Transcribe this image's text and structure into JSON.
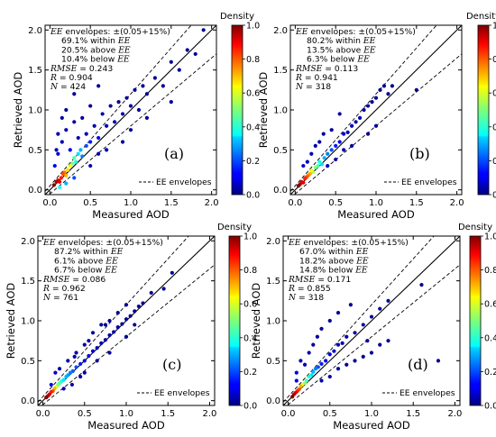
{
  "chart_data": [
    {
      "type": "scatter",
      "panel_label": "(a)",
      "xlabel": "Measured AOD",
      "ylabel": "Retrieved AOD",
      "xlim": [
        0,
        2.0
      ],
      "ylim": [
        0,
        2.0
      ],
      "xticks": [
        "0.0",
        "0.5",
        "1.0",
        "1.5",
        "2.0"
      ],
      "yticks": [
        "0.0",
        "0.5",
        "1.0",
        "1.5",
        "2.0"
      ],
      "grid": false,
      "legend": {
        "label": "EE envelopes",
        "placement": "bottom-right"
      },
      "colorbar": {
        "title": "Density",
        "ticks": [
          "0.0",
          "0.2",
          "0.4",
          "0.6",
          "0.8",
          "1.0"
        ],
        "range": [
          0,
          1
        ]
      },
      "stats": {
        "ee_prefix": "EE",
        "ee_label": " envelopes: ±(0.05+15%)",
        "within": "69.1% within ",
        "above": "20.5% above ",
        "below": "10.4% below ",
        "rmse_name": "RMSE",
        "rmse_value": " = 0.243",
        "r_name": "R",
        "r_value": " = 0.904",
        "n_name": "N",
        "n_value": " = 424"
      },
      "points": [
        [
          0.05,
          0.06,
          1.0
        ],
        [
          0.08,
          0.1,
          0.95
        ],
        [
          0.1,
          0.12,
          0.9
        ],
        [
          0.12,
          0.1,
          0.9
        ],
        [
          0.14,
          0.15,
          0.85
        ],
        [
          0.16,
          0.2,
          0.8
        ],
        [
          0.18,
          0.22,
          0.75
        ],
        [
          0.2,
          0.18,
          0.7
        ],
        [
          0.22,
          0.25,
          0.65
        ],
        [
          0.25,
          0.3,
          0.6
        ],
        [
          0.28,
          0.33,
          0.5
        ],
        [
          0.3,
          0.4,
          0.45
        ],
        [
          0.32,
          0.35,
          0.4
        ],
        [
          0.35,
          0.45,
          0.35
        ],
        [
          0.38,
          0.5,
          0.3
        ],
        [
          0.4,
          0.42,
          0.25
        ],
        [
          0.45,
          0.55,
          0.2
        ],
        [
          0.5,
          0.6,
          0.15
        ],
        [
          0.06,
          0.3,
          0.1
        ],
        [
          0.1,
          0.45,
          0.08
        ],
        [
          0.15,
          0.6,
          0.05
        ],
        [
          0.2,
          0.75,
          0.05
        ],
        [
          0.25,
          0.5,
          0.1
        ],
        [
          0.3,
          0.85,
          0.03
        ],
        [
          0.35,
          0.65,
          0.05
        ],
        [
          0.4,
          0.9,
          0.03
        ],
        [
          0.45,
          0.7,
          0.05
        ],
        [
          0.55,
          0.8,
          0.05
        ],
        [
          0.6,
          0.65,
          0.1
        ],
        [
          0.65,
          0.95,
          0.03
        ],
        [
          0.7,
          0.8,
          0.05
        ],
        [
          0.75,
          1.05,
          0.02
        ],
        [
          0.8,
          0.85,
          0.05
        ],
        [
          0.85,
          1.1,
          0.02
        ],
        [
          0.9,
          0.95,
          0.04
        ],
        [
          0.95,
          1.15,
          0.02
        ],
        [
          1.0,
          1.05,
          0.03
        ],
        [
          1.05,
          1.25,
          0.02
        ],
        [
          1.1,
          1.0,
          0.03
        ],
        [
          1.15,
          1.3,
          0.02
        ],
        [
          1.2,
          1.2,
          0.02
        ],
        [
          1.3,
          1.4,
          0.02
        ],
        [
          1.4,
          1.3,
          0.02
        ],
        [
          1.5,
          1.6,
          0.02
        ],
        [
          1.6,
          1.5,
          0.02
        ],
        [
          1.7,
          1.75,
          0.02
        ],
        [
          1.8,
          1.7,
          0.02
        ],
        [
          1.9,
          2.0,
          0.02
        ],
        [
          0.5,
          0.3,
          0.05
        ],
        [
          0.6,
          0.45,
          0.05
        ],
        [
          0.7,
          0.5,
          0.04
        ],
        [
          0.9,
          0.6,
          0.03
        ],
        [
          1.0,
          0.75,
          0.03
        ],
        [
          1.2,
          0.9,
          0.02
        ],
        [
          1.5,
          1.1,
          0.02
        ],
        [
          0.12,
          0.03,
          0.4
        ],
        [
          0.2,
          0.08,
          0.3
        ],
        [
          0.3,
          0.15,
          0.2
        ],
        [
          0.08,
          0.5,
          0.05
        ],
        [
          0.1,
          0.7,
          0.04
        ],
        [
          0.15,
          0.9,
          0.03
        ],
        [
          0.2,
          1.0,
          0.02
        ],
        [
          0.3,
          1.2,
          0.02
        ],
        [
          0.5,
          1.05,
          0.02
        ],
        [
          0.6,
          1.3,
          0.02
        ]
      ]
    },
    {
      "type": "scatter",
      "panel_label": "(b)",
      "xlabel": "Measured AOD",
      "ylabel": "Retrieved AOD",
      "xlim": [
        0,
        2.0
      ],
      "ylim": [
        0,
        2.0
      ],
      "xticks": [
        "0.0",
        "0.5",
        "1.0",
        "1.5",
        "2.0"
      ],
      "yticks": [
        "0.0",
        "0.5",
        "1.0",
        "1.5",
        "2.0"
      ],
      "grid": false,
      "legend": {
        "label": "EE envelopes",
        "placement": "bottom-right"
      },
      "colorbar": {
        "title": "Density",
        "ticks": [
          "0.0",
          "0.2",
          "0.4",
          "0.6",
          "0.8",
          "1.0"
        ],
        "range": [
          0,
          1
        ]
      },
      "stats": {
        "ee_prefix": "EE",
        "ee_label": " envelopes: ±(0.05+15%)",
        "within": "80.2% within ",
        "above": "13.5% above ",
        "below": "6.3% below ",
        "rmse_name": "RMSE",
        "rmse_value": " = 0.113",
        "r_name": "R",
        "r_value": " = 0.941",
        "n_name": "N",
        "n_value": " = 318"
      },
      "points": [
        [
          0.04,
          0.05,
          1.0
        ],
        [
          0.06,
          0.07,
          0.95
        ],
        [
          0.08,
          0.1,
          0.9
        ],
        [
          0.1,
          0.09,
          0.9
        ],
        [
          0.12,
          0.14,
          0.85
        ],
        [
          0.14,
          0.16,
          0.8
        ],
        [
          0.16,
          0.18,
          0.75
        ],
        [
          0.18,
          0.2,
          0.7
        ],
        [
          0.2,
          0.24,
          0.6
        ],
        [
          0.22,
          0.22,
          0.55
        ],
        [
          0.25,
          0.28,
          0.5
        ],
        [
          0.28,
          0.3,
          0.45
        ],
        [
          0.3,
          0.35,
          0.4
        ],
        [
          0.33,
          0.32,
          0.35
        ],
        [
          0.36,
          0.4,
          0.3
        ],
        [
          0.4,
          0.45,
          0.25
        ],
        [
          0.45,
          0.5,
          0.2
        ],
        [
          0.5,
          0.55,
          0.15
        ],
        [
          0.55,
          0.6,
          0.1
        ],
        [
          0.6,
          0.7,
          0.08
        ],
        [
          0.65,
          0.72,
          0.06
        ],
        [
          0.7,
          0.8,
          0.05
        ],
        [
          0.75,
          0.85,
          0.04
        ],
        [
          0.8,
          0.9,
          0.04
        ],
        [
          0.85,
          1.0,
          0.03
        ],
        [
          0.9,
          1.05,
          0.03
        ],
        [
          0.95,
          1.1,
          0.02
        ],
        [
          1.0,
          1.15,
          0.02
        ],
        [
          1.05,
          1.25,
          0.02
        ],
        [
          1.1,
          1.3,
          0.02
        ],
        [
          1.2,
          1.3,
          0.02
        ],
        [
          1.5,
          1.25,
          0.02
        ],
        [
          0.2,
          0.45,
          0.05
        ],
        [
          0.25,
          0.55,
          0.04
        ],
        [
          0.3,
          0.6,
          0.04
        ],
        [
          0.35,
          0.7,
          0.03
        ],
        [
          0.4,
          0.3,
          0.05
        ],
        [
          0.5,
          0.38,
          0.04
        ],
        [
          0.6,
          0.5,
          0.04
        ],
        [
          0.7,
          0.55,
          0.03
        ],
        [
          0.9,
          0.7,
          0.02
        ],
        [
          1.0,
          0.8,
          0.02
        ],
        [
          0.1,
          0.3,
          0.08
        ],
        [
          0.15,
          0.35,
          0.06
        ],
        [
          0.55,
          0.95,
          0.03
        ],
        [
          0.45,
          0.75,
          0.03
        ],
        [
          1.15,
          1.2,
          0.02
        ]
      ]
    },
    {
      "type": "scatter",
      "panel_label": "(c)",
      "xlabel": "Measured AOD",
      "ylabel": "Retrieved AOD",
      "xlim": [
        0,
        2.0
      ],
      "ylim": [
        0,
        2.0
      ],
      "xticks": [
        "0.0",
        "0.5",
        "1.0",
        "1.5",
        "2.0"
      ],
      "yticks": [
        "0.0",
        "0.5",
        "1.0",
        "1.5",
        "2.0"
      ],
      "grid": false,
      "legend": {
        "label": "EE envelopes",
        "placement": "bottom-right"
      },
      "colorbar": {
        "title": "Density",
        "ticks": [
          "0.0",
          "0.2",
          "0.4",
          "0.6",
          "0.8",
          "1.0"
        ],
        "range": [
          0,
          1
        ]
      },
      "stats": {
        "ee_prefix": "EE",
        "ee_label": " envelopes: ±(0.05+15%)",
        "within": "87.2% within ",
        "above": "6.1% above ",
        "below": "6.7% below ",
        "rmse_name": "RMSE",
        "rmse_value": " = 0.086",
        "r_name": "R",
        "r_value": " = 0.962",
        "n_name": "N",
        "n_value": " = 761"
      },
      "points": [
        [
          0.04,
          0.04,
          1.0
        ],
        [
          0.06,
          0.06,
          0.95
        ],
        [
          0.08,
          0.08,
          0.9
        ],
        [
          0.1,
          0.11,
          0.85
        ],
        [
          0.12,
          0.12,
          0.8
        ],
        [
          0.14,
          0.15,
          0.7
        ],
        [
          0.16,
          0.17,
          0.6
        ],
        [
          0.18,
          0.2,
          0.5
        ],
        [
          0.2,
          0.22,
          0.45
        ],
        [
          0.22,
          0.24,
          0.4
        ],
        [
          0.25,
          0.26,
          0.35
        ],
        [
          0.28,
          0.3,
          0.3
        ],
        [
          0.3,
          0.32,
          0.28
        ],
        [
          0.33,
          0.35,
          0.25
        ],
        [
          0.36,
          0.37,
          0.22
        ],
        [
          0.4,
          0.42,
          0.2
        ],
        [
          0.45,
          0.46,
          0.15
        ],
        [
          0.5,
          0.5,
          0.12
        ],
        [
          0.55,
          0.56,
          0.1
        ],
        [
          0.6,
          0.62,
          0.08
        ],
        [
          0.65,
          0.66,
          0.06
        ],
        [
          0.7,
          0.72,
          0.05
        ],
        [
          0.75,
          0.76,
          0.04
        ],
        [
          0.8,
          0.82,
          0.04
        ],
        [
          0.85,
          0.86,
          0.03
        ],
        [
          0.9,
          0.92,
          0.03
        ],
        [
          0.95,
          0.96,
          0.03
        ],
        [
          1.0,
          1.02,
          0.02
        ],
        [
          1.05,
          1.06,
          0.02
        ],
        [
          1.1,
          1.12,
          0.02
        ],
        [
          1.15,
          1.18,
          0.02
        ],
        [
          1.2,
          1.22,
          0.02
        ],
        [
          1.3,
          1.35,
          0.02
        ],
        [
          1.45,
          1.4,
          0.02
        ],
        [
          1.55,
          1.6,
          0.02
        ],
        [
          0.3,
          0.5,
          0.05
        ],
        [
          0.4,
          0.6,
          0.04
        ],
        [
          0.5,
          0.7,
          0.04
        ],
        [
          0.6,
          0.85,
          0.03
        ],
        [
          0.7,
          0.95,
          0.03
        ],
        [
          0.8,
          1.0,
          0.02
        ],
        [
          0.9,
          1.1,
          0.02
        ],
        [
          0.35,
          0.2,
          0.05
        ],
        [
          0.5,
          0.35,
          0.04
        ],
        [
          0.65,
          0.5,
          0.03
        ],
        [
          0.8,
          0.6,
          0.03
        ],
        [
          1.0,
          0.8,
          0.02
        ],
        [
          1.1,
          0.95,
          0.02
        ],
        [
          0.15,
          0.35,
          0.06
        ],
        [
          0.2,
          0.4,
          0.05
        ],
        [
          0.25,
          0.15,
          0.05
        ],
        [
          0.45,
          0.3,
          0.04
        ],
        [
          0.55,
          0.75,
          0.03
        ],
        [
          0.75,
          0.95,
          0.02
        ],
        [
          1.0,
          1.2,
          0.02
        ],
        [
          0.1,
          0.2,
          0.1
        ],
        [
          0.38,
          0.55,
          0.04
        ]
      ]
    },
    {
      "type": "scatter",
      "panel_label": "(d)",
      "xlabel": "Measured AOD",
      "ylabel": "Retrieved AOD",
      "xlim": [
        0,
        2.0
      ],
      "ylim": [
        0,
        2.0
      ],
      "xticks": [
        "0.0",
        "0.5",
        "1.0",
        "1.5",
        "2.0"
      ],
      "yticks": [
        "0.0",
        "0.5",
        "1.0",
        "1.5",
        "2.0"
      ],
      "grid": false,
      "legend": {
        "label": "EE envelopes",
        "placement": "bottom-right"
      },
      "colorbar": {
        "title": "Density",
        "ticks": [
          "0.0",
          "0.2",
          "0.4",
          "0.6",
          "0.8",
          "1.0"
        ],
        "range": [
          0,
          1
        ]
      },
      "stats": {
        "ee_prefix": "EE",
        "ee_label": " envelopes: ±(0.05+15%)",
        "within": "67.0% within ",
        "above": "18.2% above ",
        "below": "14.8% below ",
        "rmse_name": "RMSE",
        "rmse_value": " = 0.171",
        "r_name": "R",
        "r_value": " = 0.855",
        "n_name": "N",
        "n_value": " = 318"
      },
      "points": [
        [
          0.05,
          0.05,
          1.0
        ],
        [
          0.07,
          0.08,
          0.95
        ],
        [
          0.09,
          0.1,
          0.9
        ],
        [
          0.11,
          0.12,
          0.85
        ],
        [
          0.13,
          0.14,
          0.8
        ],
        [
          0.15,
          0.18,
          0.7
        ],
        [
          0.17,
          0.2,
          0.6
        ],
        [
          0.2,
          0.22,
          0.5
        ],
        [
          0.22,
          0.25,
          0.45
        ],
        [
          0.25,
          0.3,
          0.4
        ],
        [
          0.28,
          0.32,
          0.35
        ],
        [
          0.3,
          0.36,
          0.3
        ],
        [
          0.33,
          0.4,
          0.25
        ],
        [
          0.36,
          0.42,
          0.2
        ],
        [
          0.4,
          0.46,
          0.15
        ],
        [
          0.45,
          0.5,
          0.12
        ],
        [
          0.5,
          0.58,
          0.1
        ],
        [
          0.55,
          0.62,
          0.08
        ],
        [
          0.6,
          0.7,
          0.06
        ],
        [
          0.65,
          0.72,
          0.05
        ],
        [
          0.7,
          0.8,
          0.04
        ],
        [
          0.8,
          0.85,
          0.03
        ],
        [
          0.9,
          0.95,
          0.03
        ],
        [
          1.0,
          1.05,
          0.02
        ],
        [
          1.1,
          1.15,
          0.02
        ],
        [
          1.2,
          1.25,
          0.02
        ],
        [
          0.2,
          0.45,
          0.05
        ],
        [
          0.25,
          0.6,
          0.04
        ],
        [
          0.3,
          0.7,
          0.03
        ],
        [
          0.35,
          0.8,
          0.03
        ],
        [
          0.4,
          0.9,
          0.02
        ],
        [
          0.5,
          1.0,
          0.02
        ],
        [
          0.6,
          1.1,
          0.02
        ],
        [
          0.4,
          0.25,
          0.05
        ],
        [
          0.5,
          0.3,
          0.04
        ],
        [
          0.6,
          0.4,
          0.04
        ],
        [
          0.7,
          0.45,
          0.03
        ],
        [
          0.8,
          0.5,
          0.03
        ],
        [
          0.9,
          0.55,
          0.02
        ],
        [
          1.0,
          0.6,
          0.02
        ],
        [
          1.1,
          0.7,
          0.02
        ],
        [
          1.2,
          0.75,
          0.02
        ],
        [
          1.6,
          1.45,
          0.02
        ],
        [
          1.8,
          0.5,
          0.02
        ],
        [
          0.1,
          0.35,
          0.08
        ],
        [
          0.15,
          0.5,
          0.05
        ],
        [
          0.75,
          1.2,
          0.02
        ],
        [
          0.95,
          0.75,
          0.02
        ],
        [
          0.1,
          0.25,
          0.1
        ]
      ]
    }
  ]
}
